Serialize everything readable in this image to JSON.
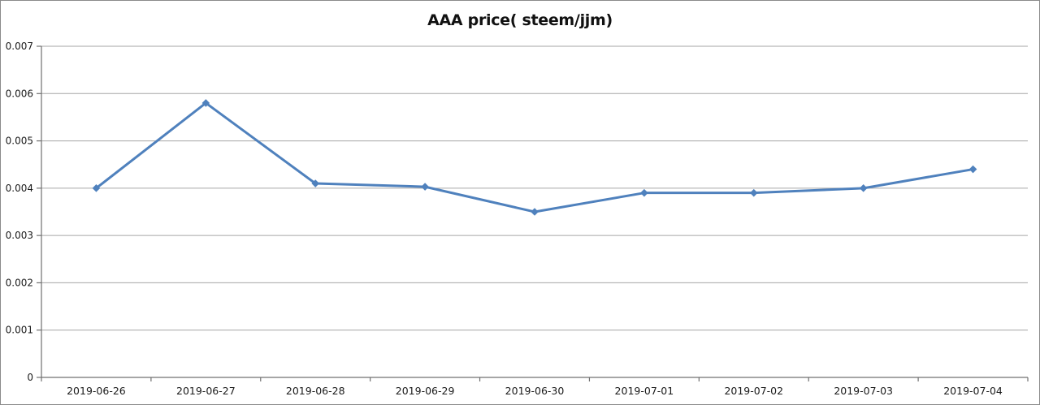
{
  "chart_data": {
    "type": "line",
    "title": "AAA price( steem/jjm)",
    "categories": [
      "2019-06-26",
      "2019-06-27",
      "2019-06-28",
      "2019-06-29",
      "2019-06-30",
      "2019-07-01",
      "2019-07-02",
      "2019-07-03",
      "2019-07-04"
    ],
    "values": [
      0.004,
      0.0058,
      0.0041,
      0.00403,
      0.0035,
      0.0039,
      0.0039,
      0.004,
      0.0044
    ],
    "y_ticks": [
      "0",
      "0.001",
      "0.002",
      "0.003",
      "0.004",
      "0.005",
      "0.006",
      "0.007"
    ],
    "ylim": [
      0,
      0.007
    ],
    "xlabel": "",
    "ylabel": "",
    "grid": true,
    "legend": false,
    "marker": "diamond",
    "colors": {
      "series": "#4F81BD",
      "gridline": "#A6A6A6",
      "axis": "#707070",
      "label": "#1a1a1a",
      "frame_border": "#8a8a8a",
      "background": "#ffffff"
    }
  }
}
